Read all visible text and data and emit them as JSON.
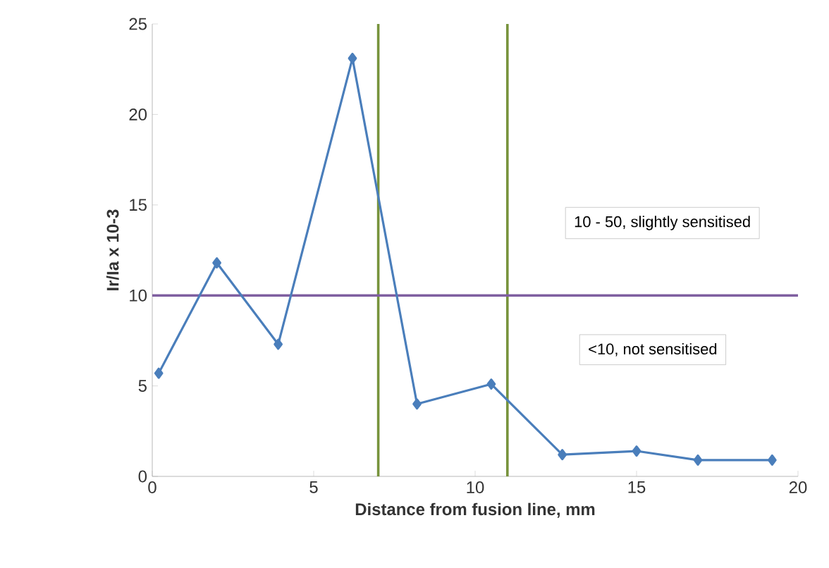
{
  "chart_data": {
    "type": "line",
    "xlabel": "Distance from fusion line, mm",
    "ylabel": "Ir/Ia x 10-3",
    "x": [
      0.2,
      2.0,
      3.9,
      6.2,
      8.2,
      10.5,
      12.7,
      15.0,
      16.9,
      19.2
    ],
    "series": [
      {
        "color": "#4a7ebb",
        "values": [
          5.7,
          11.8,
          7.3,
          23.1,
          4.0,
          5.1,
          1.2,
          1.4,
          0.9,
          0.9
        ]
      }
    ],
    "xlim": [
      0,
      20
    ],
    "xticks": [
      0,
      5,
      10,
      15,
      20
    ],
    "ylim": [
      0,
      25
    ],
    "yticks": [
      0,
      5,
      10,
      15,
      20,
      25
    ],
    "marker": "diamond",
    "grid": false,
    "ref_lines": [
      {
        "axis": "x",
        "value": 7,
        "color": "#77933c"
      },
      {
        "axis": "x",
        "value": 11,
        "color": "#77933c"
      },
      {
        "axis": "y",
        "value": 10,
        "color": "#7f5fa0"
      }
    ],
    "annotations": [
      "10 - 50, slightly sensitised",
      "<10, not sensitised"
    ]
  }
}
